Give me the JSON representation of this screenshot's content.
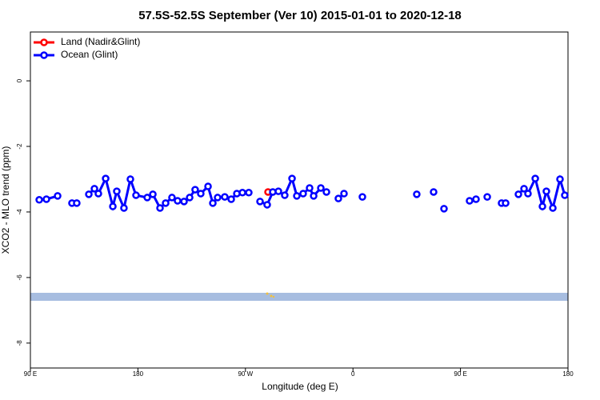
{
  "chart_data": {
    "type": "line",
    "title": "57.5S-52.5S September (Ver 10)   2015-01-01 to 2020-12-18",
    "xlabel": "Longitude (deg E)",
    "ylabel": "XCO2 - MLO trend (ppm)",
    "xlim": [
      90,
      540
    ],
    "xticks": [
      {
        "value": 90,
        "label": "90 E"
      },
      180,
      {
        "value": 270,
        "label": "90 W"
      },
      {
        "value": 360,
        "label": "0"
      },
      {
        "value": 450,
        "label": "90 E"
      },
      {
        "value": 540,
        "label": "180"
      }
    ],
    "ylim": [
      -8.76,
      1.49
    ],
    "yticks": [
      0,
      -2,
      -4,
      -6,
      -8
    ],
    "legend": "upper left",
    "series": [
      {
        "name": "Land (Nadir&Glint)",
        "color": "#ff0000",
        "x": [
          288.9
        ],
        "values": [
          -3.39
        ]
      },
      {
        "name": "Ocean (Glint)",
        "color": "#0000ff",
        "x": [
          97.4,
          103.4,
          112.8,
          null,
          124.8,
          128.8,
          null,
          138.9,
          143.6,
          146.9,
          153.0,
          159.0,
          162.3,
          168.3,
          173.7,
          178.4,
          187.8,
          192.5,
          198.5,
          203.2,
          208.5,
          213.2,
          218.6,
          223.3,
          227.9,
          232.6,
          238.7,
          242.7,
          246.7,
          252.7,
          258.1,
          262.8,
          267.5,
          272.8,
          null,
          282.2,
          288.2,
          292.9,
          297.6,
          302.9,
          309.0,
          313.0,
          318.3,
          323.7,
          327.1,
          333.1,
          337.8,
          null,
          347.8,
          352.5,
          null,
          367.9,
          null,
          413.4,
          null,
          427.5,
          null,
          436.2,
          null,
          457.6,
          463.0,
          null,
          472.4,
          null,
          484.4,
          487.8,
          null,
          498.5,
          503.2,
          506.5,
          512.6,
          518.6,
          521.9,
          527.3,
          533.3,
          537.3
        ],
        "values": [
          -3.63,
          -3.61,
          -3.51,
          null,
          -3.73,
          -3.73,
          null,
          -3.46,
          -3.29,
          -3.44,
          -2.98,
          -3.83,
          -3.37,
          -3.88,
          -3.0,
          -3.49,
          -3.56,
          -3.46,
          -3.88,
          -3.73,
          -3.56,
          -3.66,
          -3.68,
          -3.56,
          -3.32,
          -3.44,
          -3.22,
          -3.73,
          -3.56,
          -3.54,
          -3.61,
          -3.44,
          -3.41,
          -3.41,
          null,
          -3.68,
          -3.78,
          -3.39,
          -3.37,
          -3.49,
          -2.98,
          -3.51,
          -3.44,
          -3.27,
          -3.51,
          -3.27,
          -3.39,
          null,
          -3.59,
          -3.44,
          null,
          -3.54,
          null,
          -3.46,
          null,
          -3.39,
          null,
          -3.9,
          null,
          -3.66,
          -3.61,
          null,
          -3.54,
          null,
          -3.73,
          -3.73,
          null,
          -3.46,
          -3.29,
          -3.44,
          -2.98,
          -3.83,
          -3.37,
          -3.88,
          -3.0,
          -3.49
        ]
      }
    ]
  }
}
